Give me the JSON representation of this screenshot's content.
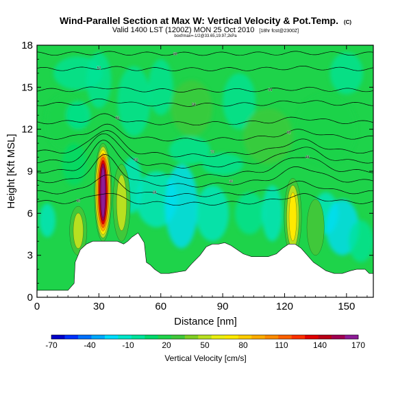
{
  "chart_data": {
    "type": "heatmap",
    "title": "Wind-Parallel Section at Max W: Vertical Velocity & Pot.Temp.",
    "title_mark": "(C)",
    "subtitle_main": "Valid 1400 LST (1200Z) MON 25 Oct 2010",
    "subtitle_extra": "[18hr fcst@2300Z]",
    "small_info": "boxf/max=-1/2@33.65,19.97,2kPa",
    "xlabel": "Distance [nm]",
    "ylabel": "Height [Kft MSL]",
    "xlim": [
      0,
      163
    ],
    "ylim": [
      0,
      18
    ],
    "xticks": [
      0,
      30,
      60,
      90,
      120,
      150
    ],
    "yticks": [
      0,
      3,
      6,
      9,
      12,
      15,
      18
    ],
    "colorbar": {
      "label": "Vertical Velocity [cm/s]",
      "ticks": [
        -70,
        -40,
        -10,
        20,
        50,
        80,
        110,
        140,
        170
      ],
      "colors": [
        "#0000c8",
        "#0030ff",
        "#0070ff",
        "#00a8ff",
        "#00dcff",
        "#00e6c8",
        "#00e39a",
        "#00d96a",
        "#1ed34a",
        "#40c83a",
        "#7fcf22",
        "#b8e020",
        "#e9ef10",
        "#ffea00",
        "#ffcc00",
        "#ffac00",
        "#ff8a00",
        "#ff6000",
        "#ff3000",
        "#e00000",
        "#b80014",
        "#a00050",
        "#8c1a96"
      ]
    },
    "updrafts": [
      {
        "x": 32,
        "z_min": 4,
        "z_max": 11,
        "peak_cm_s": 170
      },
      {
        "x": 124,
        "z_min": 3,
        "z_max": 8.5,
        "peak_cm_s": 80
      },
      {
        "x": 20,
        "z_min": 3,
        "z_max": 6.5,
        "peak_cm_s": 60
      },
      {
        "x": 41,
        "z_min": 4,
        "z_max": 9.5,
        "peak_cm_s": 50
      },
      {
        "x": 135,
        "z_min": 3,
        "z_max": 7,
        "peak_cm_s": 45
      }
    ],
    "isentropes": [
      {
        "label": "30",
        "base": 6.8,
        "bump": 0.7,
        "flat": 0.5
      },
      {
        "label": "28",
        "base": 7.5,
        "bump": 1.2,
        "flat": 0.7
      },
      {
        "label": "36",
        "base": 8.3,
        "bump": 1.8,
        "flat": 1.0
      },
      {
        "label": "48",
        "base": 9.0,
        "bump": 2.2,
        "flat": 1.1
      },
      {
        "label": "60",
        "base": 9.7,
        "bump": 2.1,
        "flat": 1.0
      },
      {
        "label": "70",
        "base": 10.4,
        "bump": 1.6,
        "flat": 0.8
      },
      {
        "label": "62",
        "base": 11.4,
        "bump": 0.9,
        "flat": 0.5
      },
      {
        "label": "50",
        "base": 12.5,
        "bump": 0.5,
        "flat": 0.3
      },
      {
        "label": "64",
        "base": 13.8,
        "bump": 0.3,
        "flat": 0.2
      },
      {
        "label": "54",
        "base": 14.8,
        "bump": 0.2,
        "flat": 0.1
      },
      {
        "label": "52",
        "base": 16.3,
        "bump": 0.1,
        "flat": 0.1
      },
      {
        "label": "58",
        "base": 17.4,
        "bump": 0.05,
        "flat": 0.05
      }
    ],
    "terrain": [
      [
        0,
        0.5
      ],
      [
        3,
        0.5
      ],
      [
        7,
        0.5
      ],
      [
        11,
        0.5
      ],
      [
        15,
        0.5
      ],
      [
        18,
        1.0
      ],
      [
        18.5,
        2.5
      ],
      [
        21,
        3.4
      ],
      [
        24,
        3.8
      ],
      [
        27,
        4.0
      ],
      [
        33,
        4.0
      ],
      [
        39,
        4.0
      ],
      [
        42,
        3.8
      ],
      [
        44,
        4.0
      ],
      [
        46,
        4.3
      ],
      [
        49,
        4.6
      ],
      [
        52,
        3.9
      ],
      [
        53,
        2.5
      ],
      [
        55,
        2.3
      ],
      [
        57,
        2.0
      ],
      [
        60,
        1.7
      ],
      [
        64,
        1.7
      ],
      [
        68,
        1.8
      ],
      [
        72,
        1.9
      ],
      [
        75,
        2.4
      ],
      [
        79,
        3.0
      ],
      [
        82,
        3.6
      ],
      [
        85,
        3.8
      ],
      [
        88,
        3.8
      ],
      [
        91,
        3.9
      ],
      [
        94,
        3.7
      ],
      [
        97,
        3.4
      ],
      [
        100,
        3.1
      ],
      [
        104,
        2.9
      ],
      [
        108,
        2.9
      ],
      [
        112,
        2.9
      ],
      [
        116,
        3.1
      ],
      [
        119,
        3.5
      ],
      [
        122,
        3.8
      ],
      [
        125,
        3.8
      ],
      [
        128,
        3.5
      ],
      [
        131,
        3.0
      ],
      [
        134,
        2.5
      ],
      [
        137,
        2.2
      ],
      [
        140,
        1.9
      ],
      [
        144,
        1.7
      ],
      [
        148,
        1.7
      ],
      [
        152,
        1.9
      ],
      [
        155,
        2.0
      ],
      [
        159,
        2.0
      ],
      [
        161,
        1.7
      ],
      [
        163,
        1.7
      ]
    ]
  }
}
